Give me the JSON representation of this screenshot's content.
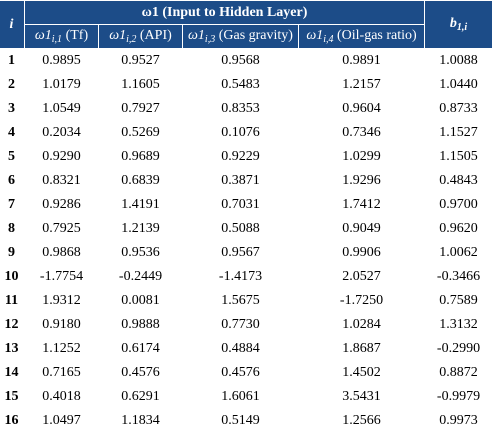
{
  "header": {
    "group_title": "ω1 (Input to Hidden Layer)",
    "index_label": "i",
    "bias_label": "b1,i",
    "columns": [
      {
        "sym": "ω1",
        "sub": "i,1",
        "desc": "(Tf)"
      },
      {
        "sym": "ω1",
        "sub": "i,2",
        "desc": "(API)"
      },
      {
        "sym": "ω1",
        "sub": "i,3",
        "desc": "(Gas gravity)"
      },
      {
        "sym": "ω1",
        "sub": "i,4",
        "desc": "(Oil-gas ratio)"
      }
    ]
  },
  "rows": [
    [
      "1",
      "0.9895",
      "0.9527",
      "0.9568",
      "0.9891",
      "1.0088"
    ],
    [
      "2",
      "1.0179",
      "1.1605",
      "0.5483",
      "1.2157",
      "1.0440"
    ],
    [
      "3",
      "1.0549",
      "0.7927",
      "0.8353",
      "0.9604",
      "0.8733"
    ],
    [
      "4",
      "0.2034",
      "0.5269",
      "0.1076",
      "0.7346",
      "1.1527"
    ],
    [
      "5",
      "0.9290",
      "0.9689",
      "0.9229",
      "1.0299",
      "1.1505"
    ],
    [
      "6",
      "0.8321",
      "0.6839",
      "0.3871",
      "1.9296",
      "0.4843"
    ],
    [
      "7",
      "0.9286",
      "1.4191",
      "0.7031",
      "1.7412",
      "0.9700"
    ],
    [
      "8",
      "0.7925",
      "1.2139",
      "0.5088",
      "0.9049",
      "0.9620"
    ],
    [
      "9",
      "0.9868",
      "0.9536",
      "0.9567",
      "0.9906",
      "1.0062"
    ],
    [
      "10",
      "-1.7754",
      "-0.2449",
      "-1.4173",
      "2.0527",
      "-0.3466"
    ],
    [
      "11",
      "1.9312",
      "0.0081",
      "1.5675",
      "-1.7250",
      "0.7589"
    ],
    [
      "12",
      "0.9180",
      "0.9888",
      "0.7730",
      "1.0284",
      "1.3132"
    ],
    [
      "13",
      "1.1252",
      "0.6174",
      "0.4884",
      "1.8687",
      "-0.2990"
    ],
    [
      "14",
      "0.7165",
      "0.4576",
      "0.4576",
      "1.4502",
      "0.8872"
    ],
    [
      "15",
      "0.4018",
      "0.6291",
      "1.6061",
      "3.5431",
      "-0.9979"
    ],
    [
      "16",
      "1.0497",
      "1.1834",
      "0.5149",
      "1.2566",
      "0.9973"
    ]
  ]
}
